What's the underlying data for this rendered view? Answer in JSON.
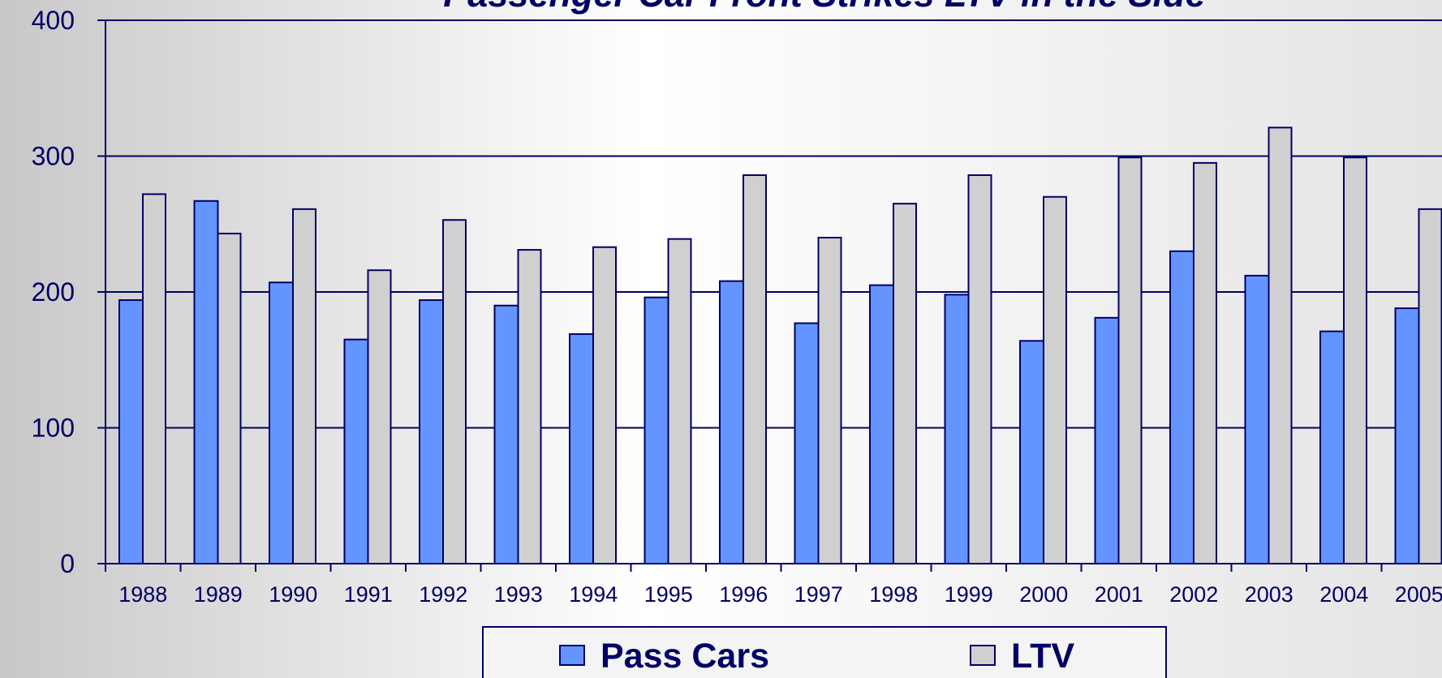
{
  "chart_data": {
    "type": "bar",
    "title": "Passenger Car Front Strikes LTV in the Side",
    "categories": [
      "1988",
      "1989",
      "1990",
      "1991",
      "1992",
      "1993",
      "1994",
      "1995",
      "1996",
      "1997",
      "1998",
      "1999",
      "2000",
      "2001",
      "2002",
      "2003",
      "2004",
      "2005"
    ],
    "series": [
      {
        "name": "Pass Cars",
        "color": "#6495ff",
        "values": [
          194,
          267,
          207,
          165,
          194,
          190,
          169,
          196,
          208,
          177,
          205,
          198,
          164,
          181,
          230,
          212,
          171,
          188
        ]
      },
      {
        "name": "LTV",
        "color": "#d0d0d0",
        "values": [
          272,
          243,
          261,
          216,
          253,
          231,
          233,
          239,
          286,
          240,
          265,
          286,
          270,
          299,
          295,
          321,
          299,
          261
        ]
      }
    ],
    "ylim": [
      0,
      400
    ],
    "yticks": [
      0,
      100,
      200,
      300,
      400
    ],
    "grid": true,
    "legend": "bottom"
  }
}
